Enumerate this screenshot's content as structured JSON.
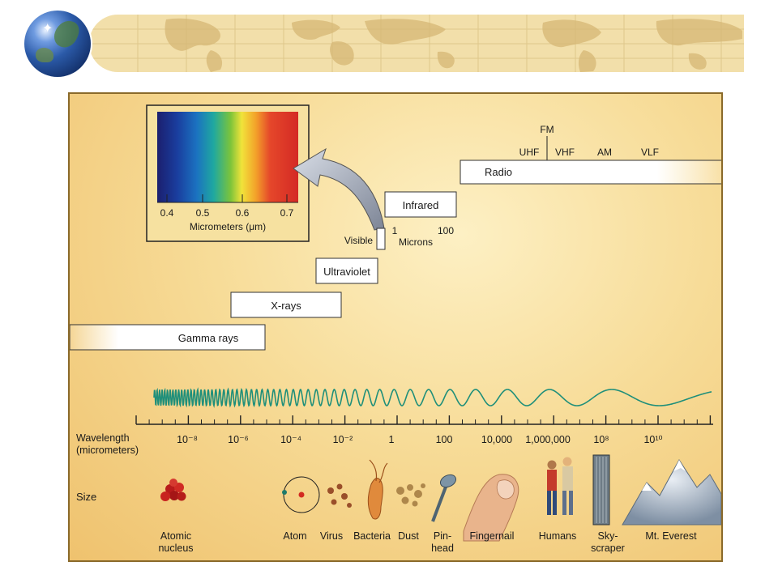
{
  "inset": {
    "ticks": [
      "0.4",
      "0.5",
      "0.6",
      "0.7"
    ],
    "axis_label": "Micrometers (μm)"
  },
  "bands": {
    "radio": "Radio",
    "infrared": "Infrared",
    "visible": "Visible",
    "ultraviolet": "Ultraviolet",
    "xrays": "X-rays",
    "gamma": "Gamma rays"
  },
  "radio_sub": {
    "fm": "FM",
    "uhf": "UHF",
    "vhf": "VHF",
    "am": "AM",
    "vlf": "VLF"
  },
  "microns": {
    "t1": "1",
    "t100": "100",
    "label": "Microns"
  },
  "wavelength": {
    "label_line1": "Wavelength",
    "label_line2": "(micrometers)",
    "ticks": [
      "10⁻⁸",
      "10⁻⁶",
      "10⁻⁴",
      "10⁻²",
      "1",
      "100",
      "10,000",
      "1,000,000",
      "10⁸",
      "10¹⁰"
    ]
  },
  "size": {
    "label": "Size",
    "objects": [
      [
        "Atomic",
        "nucleus"
      ],
      [
        "Atom"
      ],
      [
        "Virus"
      ],
      [
        "Bacteria"
      ],
      [
        "Dust"
      ],
      [
        "Pin-",
        "head"
      ],
      [
        "Fingernail"
      ],
      [
        "Humans"
      ],
      [
        "Sky-",
        "scraper"
      ],
      [
        "Mt. Everest"
      ]
    ]
  },
  "colors": {
    "wave": "#1f8f7a",
    "bar_fill": "#ffffff",
    "background_light": "#fdf0c4",
    "background_dark": "#efc26e"
  }
}
